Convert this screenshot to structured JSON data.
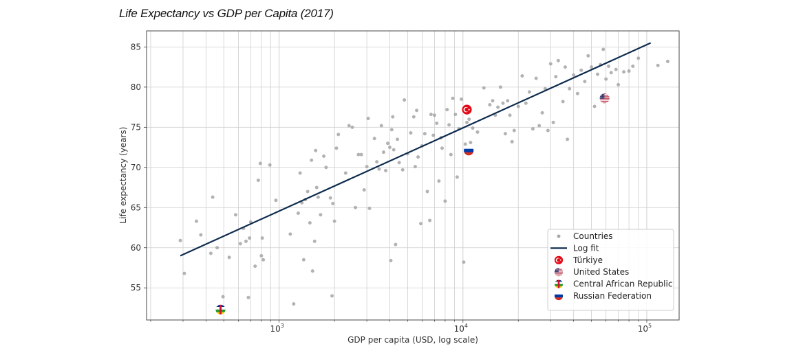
{
  "title": "Life Expectancy vs GDP  per Capita (2017)",
  "chart_data": {
    "type": "scatter",
    "xlabel": "GDP per capita (USD, log scale)",
    "ylabel": "Life expectancy (years)",
    "xscale": "log",
    "xlim": [
      190,
      150000
    ],
    "ylim": [
      51,
      87
    ],
    "grid": true,
    "legend_position": "lower-right",
    "x_ticks": [
      {
        "value": 1000,
        "base": "10",
        "exp": "3"
      },
      {
        "value": 10000,
        "base": "10",
        "exp": "4"
      },
      {
        "value": 100000,
        "base": "10",
        "exp": "5"
      }
    ],
    "y_ticks": [
      55,
      60,
      65,
      70,
      75,
      80,
      85
    ],
    "series": [
      {
        "name": "Countries",
        "color": "#a6a6a6",
        "points": [
          [
            290,
            60.9
          ],
          [
            305,
            56.8
          ],
          [
            355,
            63.3
          ],
          [
            375,
            61.6
          ],
          [
            425,
            59.3
          ],
          [
            435,
            66.3
          ],
          [
            460,
            60.0
          ],
          [
            495,
            53.9
          ],
          [
            535,
            58.8
          ],
          [
            580,
            64.1
          ],
          [
            615,
            60.5
          ],
          [
            640,
            62.4
          ],
          [
            660,
            60.8
          ],
          [
            680,
            53.8
          ],
          [
            690,
            61.2
          ],
          [
            700,
            63.2
          ],
          [
            740,
            57.7
          ],
          [
            770,
            68.4
          ],
          [
            790,
            70.5
          ],
          [
            800,
            59.0
          ],
          [
            810,
            61.2
          ],
          [
            820,
            58.5
          ],
          [
            890,
            70.3
          ],
          [
            960,
            65.9
          ],
          [
            1150,
            61.7
          ],
          [
            1200,
            53.0
          ],
          [
            1270,
            64.3
          ],
          [
            1300,
            69.3
          ],
          [
            1330,
            65.6
          ],
          [
            1360,
            58.5
          ],
          [
            1390,
            66.0
          ],
          [
            1430,
            67.0
          ],
          [
            1470,
            63.1
          ],
          [
            1500,
            70.9
          ],
          [
            1520,
            57.1
          ],
          [
            1560,
            60.8
          ],
          [
            1580,
            72.1
          ],
          [
            1600,
            67.5
          ],
          [
            1630,
            66.3
          ],
          [
            1680,
            64.1
          ],
          [
            1750,
            71.4
          ],
          [
            1800,
            70.0
          ],
          [
            1900,
            66.2
          ],
          [
            1940,
            54.0
          ],
          [
            1960,
            65.5
          ],
          [
            2000,
            63.3
          ],
          [
            2050,
            72.4
          ],
          [
            2100,
            74.1
          ],
          [
            2300,
            69.3
          ],
          [
            2400,
            75.2
          ],
          [
            2500,
            75.0
          ],
          [
            2600,
            65.0
          ],
          [
            2700,
            71.6
          ],
          [
            2800,
            71.6
          ],
          [
            2900,
            67.2
          ],
          [
            3000,
            70.1
          ],
          [
            3050,
            76.1
          ],
          [
            3100,
            64.9
          ],
          [
            3300,
            73.6
          ],
          [
            3400,
            70.7
          ],
          [
            3500,
            69.8
          ],
          [
            3600,
            75.2
          ],
          [
            3700,
            71.9
          ],
          [
            3800,
            69.6
          ],
          [
            3900,
            73.0
          ],
          [
            4000,
            72.5
          ],
          [
            4050,
            58.4
          ],
          [
            4100,
            74.7
          ],
          [
            4150,
            76.3
          ],
          [
            4200,
            72.2
          ],
          [
            4300,
            60.4
          ],
          [
            4400,
            73.5
          ],
          [
            4500,
            70.6
          ],
          [
            4700,
            69.7
          ],
          [
            4800,
            78.4
          ],
          [
            5000,
            71.7
          ],
          [
            5200,
            74.3
          ],
          [
            5400,
            76.3
          ],
          [
            5500,
            70.1
          ],
          [
            5600,
            77.1
          ],
          [
            5700,
            71.3
          ],
          [
            5900,
            63.0
          ],
          [
            6000,
            72.7
          ],
          [
            6200,
            74.2
          ],
          [
            6400,
            67.0
          ],
          [
            6600,
            63.4
          ],
          [
            6700,
            76.6
          ],
          [
            6900,
            74.0
          ],
          [
            7000,
            76.5
          ],
          [
            7200,
            75.5
          ],
          [
            7400,
            68.3
          ],
          [
            7600,
            73.7
          ],
          [
            7700,
            72.4
          ],
          [
            8000,
            65.8
          ],
          [
            8200,
            77.2
          ],
          [
            8400,
            75.3
          ],
          [
            8600,
            71.6
          ],
          [
            8800,
            78.6
          ],
          [
            9100,
            76.6
          ],
          [
            9300,
            68.8
          ],
          [
            9500,
            74.8
          ],
          [
            9800,
            78.5
          ],
          [
            10100,
            58.2
          ],
          [
            10300,
            72.9
          ],
          [
            10500,
            75.6
          ],
          [
            10800,
            76.0
          ],
          [
            11000,
            73.1
          ],
          [
            11300,
            74.9
          ],
          [
            12000,
            74.4
          ],
          [
            13000,
            79.9
          ],
          [
            14000,
            77.8
          ],
          [
            14500,
            78.3
          ],
          [
            15000,
            76.5
          ],
          [
            15500,
            77.5
          ],
          [
            16000,
            80.0
          ],
          [
            16500,
            78.0
          ],
          [
            17000,
            74.2
          ],
          [
            17500,
            78.3
          ],
          [
            18000,
            76.5
          ],
          [
            18500,
            73.2
          ],
          [
            19000,
            74.6
          ],
          [
            20000,
            77.6
          ],
          [
            21000,
            81.4
          ],
          [
            22000,
            78.0
          ],
          [
            23000,
            79.4
          ],
          [
            24000,
            74.8
          ],
          [
            25000,
            81.1
          ],
          [
            26000,
            75.2
          ],
          [
            27000,
            76.8
          ],
          [
            28000,
            79.8
          ],
          [
            29000,
            74.6
          ],
          [
            30000,
            82.9
          ],
          [
            31000,
            75.6
          ],
          [
            32000,
            81.3
          ],
          [
            33000,
            83.3
          ],
          [
            35000,
            78.2
          ],
          [
            36000,
            82.5
          ],
          [
            37000,
            73.5
          ],
          [
            38000,
            79.8
          ],
          [
            40000,
            81.5
          ],
          [
            42000,
            79.2
          ],
          [
            44000,
            82.1
          ],
          [
            46000,
            80.7
          ],
          [
            48000,
            83.9
          ],
          [
            50000,
            82.5
          ],
          [
            52000,
            77.6
          ],
          [
            54000,
            81.6
          ],
          [
            56000,
            82.8
          ],
          [
            58000,
            84.7
          ],
          [
            60000,
            81.0
          ],
          [
            62000,
            82.6
          ],
          [
            64000,
            81.8
          ],
          [
            68000,
            82.2
          ],
          [
            70000,
            80.3
          ],
          [
            75000,
            81.9
          ],
          [
            80000,
            82.0
          ],
          [
            84000,
            82.6
          ],
          [
            90000,
            83.6
          ],
          [
            115000,
            82.7
          ],
          [
            130000,
            83.2
          ]
        ]
      },
      {
        "name": "Log fit",
        "color": "#0d2b4e",
        "x": [
          290,
          105000
        ],
        "y": [
          59.0,
          85.5
        ]
      }
    ],
    "highlights": [
      {
        "name": "Türkiye",
        "flag": "turkey",
        "x": 10500,
        "y": 77.2
      },
      {
        "name": "United States",
        "flag": "usa",
        "x": 59000,
        "y": 78.6
      },
      {
        "name": "Central African Republic",
        "flag": "car",
        "x": 480,
        "y": 52.3
      },
      {
        "name": "Russian Federation",
        "flag": "russia",
        "x": 10750,
        "y": 72.1
      }
    ]
  }
}
